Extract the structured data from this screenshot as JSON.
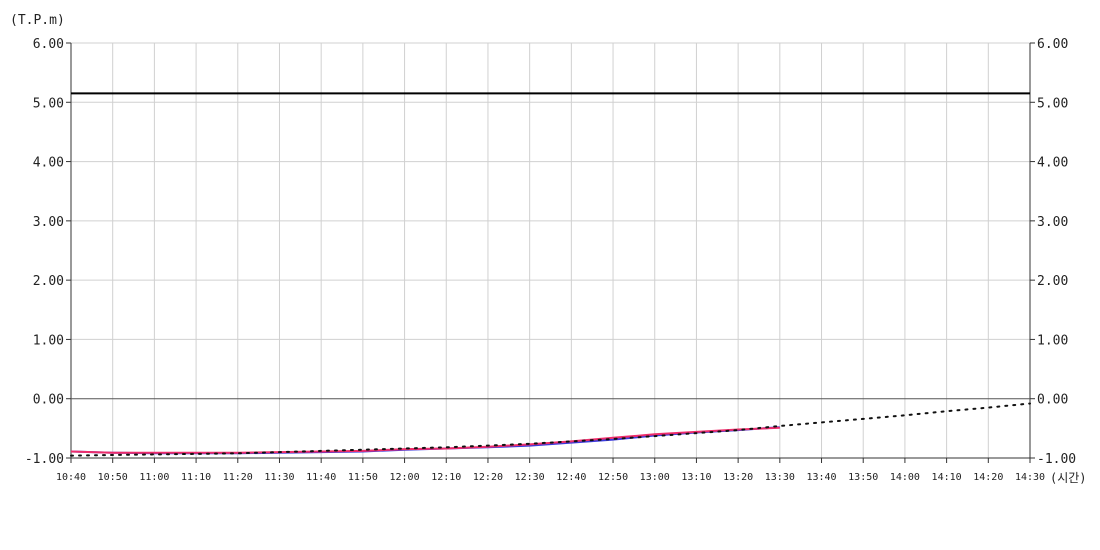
{
  "chart_data": {
    "type": "line",
    "y_unit_label": "(T.P.m)",
    "x_unit_label": "(시간)",
    "ylim": [
      -1.0,
      6.0
    ],
    "y_ticks": [
      "6.00",
      "5.00",
      "4.00",
      "3.00",
      "2.00",
      "1.00",
      "0.00",
      "-1.00"
    ],
    "y_tick_values": [
      6,
      5,
      4,
      3,
      2,
      1,
      0,
      -1
    ],
    "x_tick_labels": [
      "10:40",
      "10:50",
      "11:00",
      "11:10",
      "11:20",
      "11:30",
      "11:40",
      "11:50",
      "12:00",
      "12:10",
      "12:20",
      "12:30",
      "12:40",
      "12:50",
      "13:00",
      "13:10",
      "13:20",
      "13:30",
      "13:40",
      "13:50",
      "14:00",
      "14:10",
      "14:20",
      "14:30"
    ],
    "grid": true,
    "threshold_line": {
      "y": 5.15,
      "color": "#000000"
    },
    "zero_line": {
      "y": 0.0,
      "color": "#555555"
    },
    "series": [
      {
        "style": "solid",
        "color": "#3b3bdd",
        "points": [
          [
            0,
            -0.89
          ],
          [
            1,
            -0.91
          ],
          [
            2,
            -0.92
          ],
          [
            3,
            -0.92
          ],
          [
            4,
            -0.92
          ],
          [
            5,
            -0.91
          ],
          [
            6,
            -0.9
          ],
          [
            7,
            -0.89
          ],
          [
            8,
            -0.86
          ],
          [
            9,
            -0.84
          ],
          [
            10,
            -0.82
          ],
          [
            11,
            -0.79
          ],
          [
            12,
            -0.74
          ],
          [
            13,
            -0.69
          ],
          [
            14,
            -0.62
          ],
          [
            15,
            -0.57
          ],
          [
            16,
            -0.53
          ],
          [
            17,
            -0.48
          ]
        ]
      },
      {
        "style": "solid",
        "color": "#ee2d6b",
        "points": [
          [
            0,
            -0.89
          ],
          [
            1,
            -0.91
          ],
          [
            2,
            -0.91
          ],
          [
            3,
            -0.91
          ],
          [
            4,
            -0.91
          ],
          [
            5,
            -0.9
          ],
          [
            6,
            -0.89
          ],
          [
            7,
            -0.88
          ],
          [
            8,
            -0.85
          ],
          [
            9,
            -0.84
          ],
          [
            10,
            -0.81
          ],
          [
            11,
            -0.77
          ],
          [
            12,
            -0.72
          ],
          [
            13,
            -0.66
          ],
          [
            14,
            -0.6
          ],
          [
            15,
            -0.56
          ],
          [
            16,
            -0.52
          ],
          [
            17,
            -0.49
          ]
        ]
      },
      {
        "style": "dotted",
        "color": "#111111",
        "points": [
          [
            0,
            -0.96
          ],
          [
            1,
            -0.95
          ],
          [
            2,
            -0.94
          ],
          [
            3,
            -0.93
          ],
          [
            4,
            -0.92
          ],
          [
            5,
            -0.9
          ],
          [
            6,
            -0.88
          ],
          [
            7,
            -0.86
          ],
          [
            8,
            -0.84
          ],
          [
            9,
            -0.82
          ],
          [
            10,
            -0.79
          ],
          [
            11,
            -0.76
          ],
          [
            12,
            -0.72
          ],
          [
            13,
            -0.68
          ],
          [
            14,
            -0.63
          ],
          [
            15,
            -0.58
          ],
          [
            16,
            -0.53
          ],
          [
            17,
            -0.46
          ],
          [
            18,
            -0.4
          ],
          [
            19,
            -0.34
          ],
          [
            20,
            -0.28
          ],
          [
            21,
            -0.21
          ],
          [
            22,
            -0.15
          ],
          [
            23,
            -0.08
          ]
        ]
      }
    ]
  }
}
